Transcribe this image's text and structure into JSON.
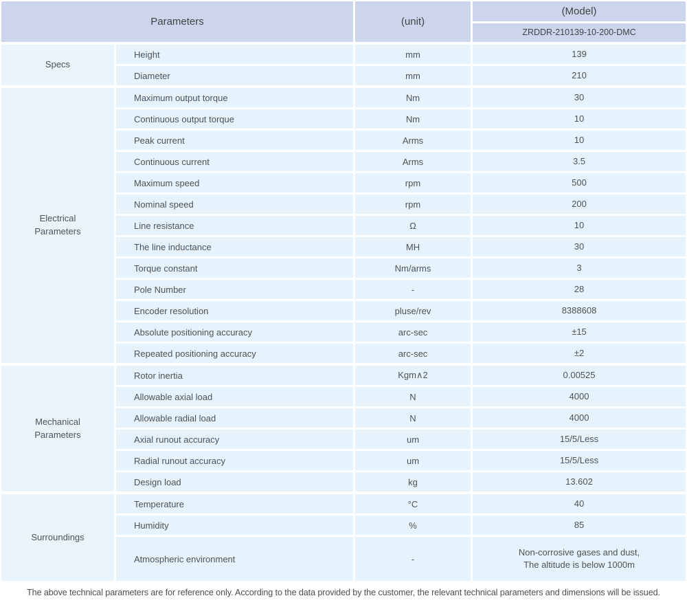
{
  "table": {
    "header": {
      "parameters": "Parameters",
      "unit": "(unit)",
      "model": "(Model)",
      "model_number": "ZRDDR-210139-10-200-DMC"
    },
    "sections": [
      {
        "label": "Specs",
        "rows": [
          {
            "param": "Height",
            "unit": "mm",
            "value": "139"
          },
          {
            "param": "Diameter",
            "unit": "mm",
            "value": "210"
          }
        ]
      },
      {
        "label": "Electrical Parameters",
        "rows": [
          {
            "param": "Maximum output torque",
            "unit": "Nm",
            "value": "30"
          },
          {
            "param": "Continuous output torque",
            "unit": "Nm",
            "value": "10"
          },
          {
            "param": "Peak current",
            "unit": "Arms",
            "value": "10"
          },
          {
            "param": "Continuous current",
            "unit": "Arms",
            "value": "3.5"
          },
          {
            "param": "Maximum speed",
            "unit": "rpm",
            "value": "500"
          },
          {
            "param": "Nominal speed",
            "unit": "rpm",
            "value": "200"
          },
          {
            "param": "Line resistance",
            "unit": "Ω",
            "value": "10"
          },
          {
            "param": "The line inductance",
            "unit": "MH",
            "value": "30"
          },
          {
            "param": "Torque constant",
            "unit": "Nm/arms",
            "value": "3"
          },
          {
            "param": "Pole Number",
            "unit": "-",
            "value": "28"
          },
          {
            "param": "Encoder resolution",
            "unit": "pluse/rev",
            "value": "8388608"
          },
          {
            "param": "Absolute positioning accuracy",
            "unit": "arc-sec",
            "value": "±15"
          },
          {
            "param": "Repeated positioning accuracy",
            "unit": "arc-sec",
            "value": "±2"
          }
        ]
      },
      {
        "label": "Mechanical Parameters",
        "rows": [
          {
            "param": "Rotor inertia",
            "unit": "Kgm∧2",
            "value": "0.00525"
          },
          {
            "param": "Allowable axial load",
            "unit": "N",
            "value": "4000"
          },
          {
            "param": "Allowable radial load",
            "unit": "N",
            "value": "4000"
          },
          {
            "param": "Axial runout accuracy",
            "unit": "um",
            "value": "15/5/Less"
          },
          {
            "param": "Radial runout accuracy",
            "unit": "um",
            "value": "15/5/Less"
          },
          {
            "param": "Design load",
            "unit": "kg",
            "value": "13.602"
          }
        ]
      },
      {
        "label": "Surroundings",
        "rows": [
          {
            "param": "Temperature",
            "unit": "°C",
            "value": "40"
          },
          {
            "param": "Humidity",
            "unit": "%",
            "value": "85"
          },
          {
            "param": "Atmospheric environment",
            "unit": "-",
            "value": "Non-corrosive gases and dust,",
            "value2": "The altitude is below 1000m",
            "tall": true
          }
        ]
      }
    ]
  },
  "footer": {
    "note": "The above technical parameters are for reference only. According to the data provided by the customer, the relevant technical parameters and dimensions will be issued."
  },
  "colors": {
    "header_bg": "#ccd5ec",
    "row_bg": "#e7f3fc",
    "label_bg": "#eaf4fc",
    "text": "#4c5257"
  }
}
